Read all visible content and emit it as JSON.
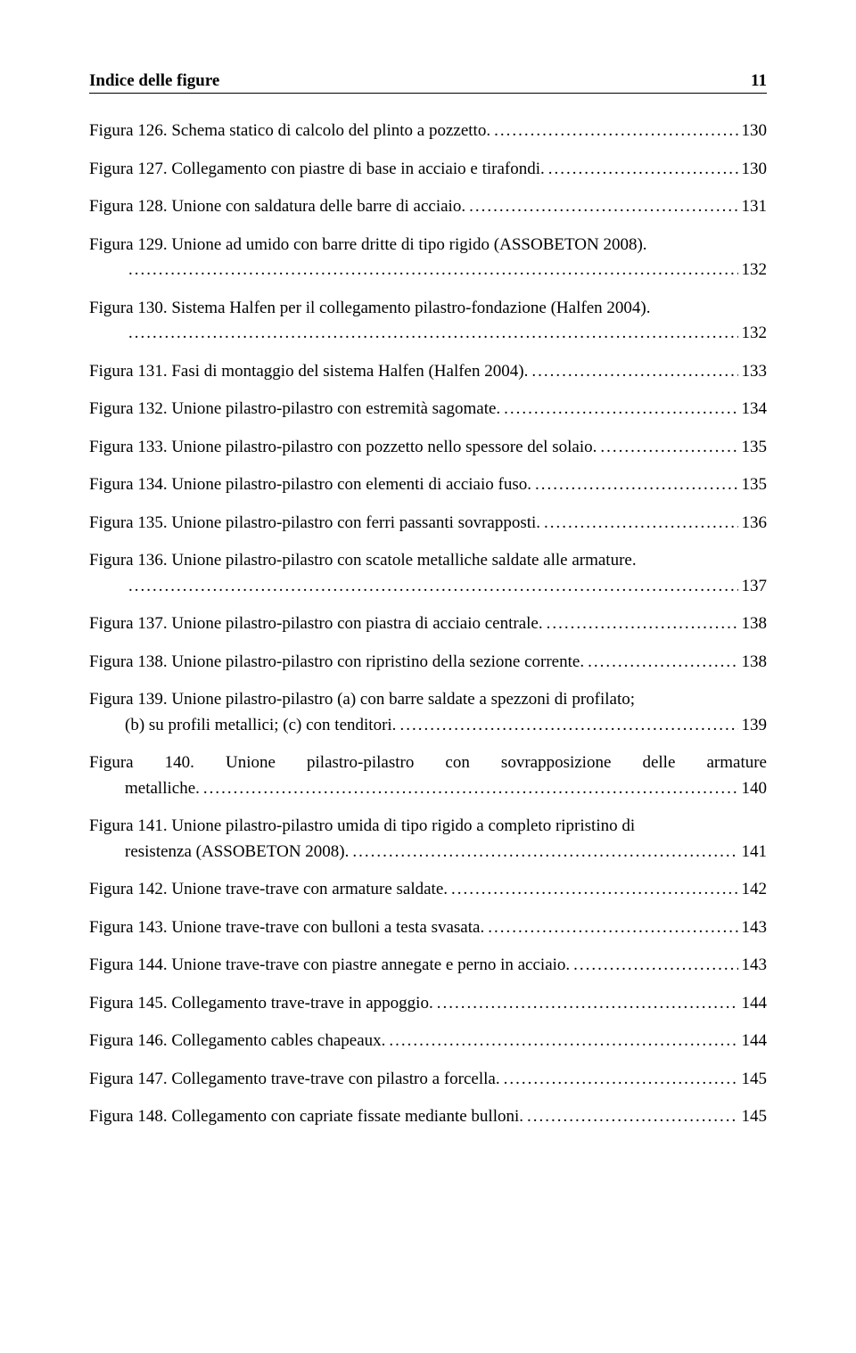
{
  "header": {
    "title": "Indice delle figure",
    "page": "11"
  },
  "entries": [
    {
      "text": "Figura 126. Schema statico di calcolo del plinto a pozzetto.",
      "page": "130",
      "indent": false,
      "multiline": false
    },
    {
      "text": "Figura 127. Collegamento con piastre di base in acciaio e tirafondi.",
      "page": "130",
      "indent": false,
      "multiline": false
    },
    {
      "text": "Figura 128. Unione con saldatura delle barre di acciaio.",
      "page": "131",
      "indent": false,
      "multiline": false
    },
    {
      "text1": "Figura 129. Unione ad umido con barre dritte di tipo rigido (ASSOBETON 2008).",
      "text2": "",
      "page": "132",
      "indent": true,
      "multiline": true
    },
    {
      "text1": "Figura 130. Sistema Halfen per il collegamento pilastro-fondazione (Halfen 2004).",
      "text2": "",
      "page": "132",
      "indent": true,
      "multiline": true
    },
    {
      "text": "Figura 131. Fasi di montaggio del sistema Halfen (Halfen 2004).",
      "page": "133",
      "indent": false,
      "multiline": false
    },
    {
      "text": "Figura 132. Unione pilastro-pilastro con estremità sagomate.",
      "page": "134",
      "indent": false,
      "multiline": false
    },
    {
      "text": "Figura 133. Unione pilastro-pilastro con pozzetto nello spessore del solaio.",
      "page": "135",
      "indent": false,
      "multiline": false
    },
    {
      "text": "Figura 134. Unione pilastro-pilastro con elementi di acciaio fuso.",
      "page": "135",
      "indent": false,
      "multiline": false
    },
    {
      "text": "Figura 135. Unione pilastro-pilastro con ferri passanti sovrapposti.",
      "page": "136",
      "indent": false,
      "multiline": false
    },
    {
      "text1": "Figura 136. Unione pilastro-pilastro con scatole metalliche saldate alle armature.",
      "text2": "",
      "page": "137",
      "indent": true,
      "multiline": true
    },
    {
      "text": "Figura 137. Unione pilastro-pilastro con piastra di acciaio centrale.",
      "page": "138",
      "indent": false,
      "multiline": false
    },
    {
      "text": "Figura 138. Unione pilastro-pilastro con ripristino della sezione corrente.",
      "page": "138",
      "indent": false,
      "multiline": false
    },
    {
      "text1": "Figura 139. Unione pilastro-pilastro (a) con barre saldate a spezzoni di profilato;",
      "text2": "(b) su profili metallici; (c) con tenditori.",
      "page": "139",
      "indent": true,
      "multiline": true
    },
    {
      "text1": "Figura 140. Unione pilastro-pilastro con sovrapposizione delle armature",
      "text2": "metalliche.",
      "page": "140",
      "indent": true,
      "multiline": true,
      "justify": true
    },
    {
      "text1": "Figura 141. Unione pilastro-pilastro umida di tipo rigido a completo ripristino di",
      "text2": "resistenza (ASSOBETON 2008).",
      "page": "141",
      "indent": true,
      "multiline": true
    },
    {
      "text": "Figura 142. Unione trave-trave con armature saldate.",
      "page": "142",
      "indent": false,
      "multiline": false
    },
    {
      "text": "Figura 143. Unione trave-trave con bulloni a testa svasata.",
      "page": "143",
      "indent": false,
      "multiline": false
    },
    {
      "text": "Figura 144. Unione trave-trave con piastre annegate e perno in acciaio.",
      "page": "143",
      "indent": false,
      "multiline": false
    },
    {
      "text": "Figura 145. Collegamento trave-trave in appoggio.",
      "page": "144",
      "indent": false,
      "multiline": false
    },
    {
      "text": "Figura 146. Collegamento cables chapeaux.",
      "page": "144",
      "indent": false,
      "multiline": false
    },
    {
      "text": "Figura 147. Collegamento trave-trave con pilastro a forcella.",
      "page": "145",
      "indent": false,
      "multiline": false
    },
    {
      "text": "Figura 148. Collegamento con capriate fissate mediante bulloni.",
      "page": "145",
      "indent": false,
      "multiline": false
    }
  ]
}
